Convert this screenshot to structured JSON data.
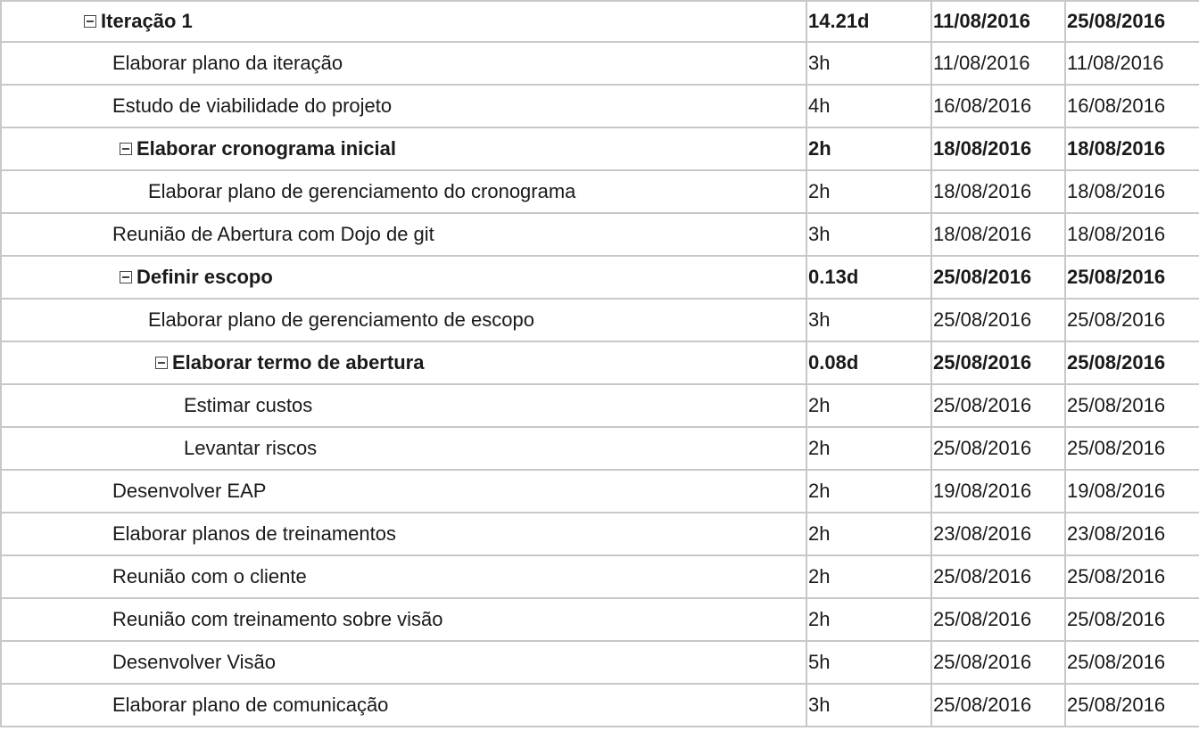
{
  "tasks": [
    {
      "name": "Iteração 1",
      "duration": "14.21d",
      "start": "11/08/2016",
      "end": "25/08/2016",
      "level": 0,
      "group": true
    },
    {
      "name": "Elaborar plano da iteração",
      "duration": "3h",
      "start": "11/08/2016",
      "end": "11/08/2016",
      "level": 1,
      "group": false
    },
    {
      "name": "Estudo de viabilidade do projeto",
      "duration": "4h",
      "start": "16/08/2016",
      "end": "16/08/2016",
      "level": 1,
      "group": false
    },
    {
      "name": "Elaborar cronograma inicial",
      "duration": "2h",
      "start": "18/08/2016",
      "end": "18/08/2016",
      "level": 1,
      "group": true
    },
    {
      "name": "Elaborar plano de gerenciamento do cronograma",
      "duration": "2h",
      "start": "18/08/2016",
      "end": "18/08/2016",
      "level": 2,
      "group": false
    },
    {
      "name": "Reunião de Abertura com Dojo de git",
      "duration": "3h",
      "start": "18/08/2016",
      "end": "18/08/2016",
      "level": 1,
      "group": false
    },
    {
      "name": "Definir escopo",
      "duration": "0.13d",
      "start": "25/08/2016",
      "end": "25/08/2016",
      "level": 1,
      "group": true
    },
    {
      "name": "Elaborar plano de gerenciamento de escopo",
      "duration": "3h",
      "start": "25/08/2016",
      "end": "25/08/2016",
      "level": 2,
      "group": false
    },
    {
      "name": "Elaborar termo de abertura",
      "duration": "0.08d",
      "start": "25/08/2016",
      "end": "25/08/2016",
      "level": 2,
      "group": true
    },
    {
      "name": "Estimar custos",
      "duration": "2h",
      "start": "25/08/2016",
      "end": "25/08/2016",
      "level": 3,
      "group": false
    },
    {
      "name": "Levantar riscos",
      "duration": "2h",
      "start": "25/08/2016",
      "end": "25/08/2016",
      "level": 3,
      "group": false
    },
    {
      "name": "Desenvolver EAP",
      "duration": "2h",
      "start": "19/08/2016",
      "end": "19/08/2016",
      "level": 1,
      "group": false
    },
    {
      "name": "Elaborar planos de treinamentos",
      "duration": "2h",
      "start": "23/08/2016",
      "end": "23/08/2016",
      "level": 1,
      "group": false
    },
    {
      "name": "Reunião com o cliente",
      "duration": "2h",
      "start": "25/08/2016",
      "end": "25/08/2016",
      "level": 1,
      "group": false
    },
    {
      "name": "Reunião com treinamento sobre visão",
      "duration": "2h",
      "start": "25/08/2016",
      "end": "25/08/2016",
      "level": 1,
      "group": false
    },
    {
      "name": "Desenvolver Visão",
      "duration": "5h",
      "start": "25/08/2016",
      "end": "25/08/2016",
      "level": 1,
      "group": false
    },
    {
      "name": "Elaborar plano de comunicação",
      "duration": "3h",
      "start": "25/08/2016",
      "end": "25/08/2016",
      "level": 1,
      "group": false
    }
  ],
  "colors": {
    "grid_line": "#c8c8c8",
    "text": "#1a1a1a",
    "background": "#ffffff"
  },
  "icons": {
    "group_toggle": "collapse-minus-icon"
  }
}
